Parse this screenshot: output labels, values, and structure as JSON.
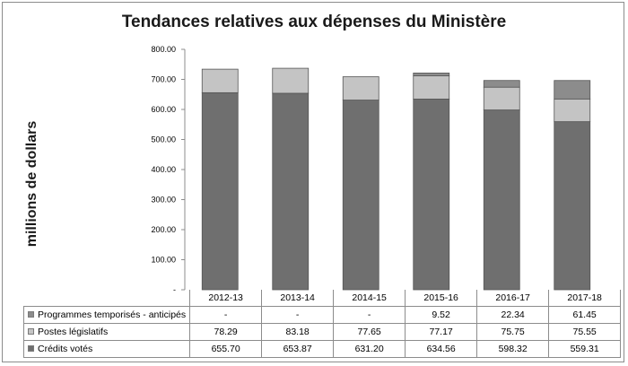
{
  "chart_data": {
    "type": "bar",
    "stacked": true,
    "title": "Tendances relatives aux dépenses du Ministère",
    "xlabel": "",
    "ylabel": "millions de dollars",
    "ylim": [
      0,
      800
    ],
    "yticks": [
      "-",
      "100.00",
      "200.00",
      "300.00",
      "400.00",
      "500.00",
      "600.00",
      "700.00",
      "800.00"
    ],
    "categories": [
      "2012-13",
      "2013-14",
      "2014-15",
      "2015-16",
      "2016-17",
      "2017-18"
    ],
    "grid": false,
    "legend": "data-table",
    "series": [
      {
        "name": "Programmes temporisés - anticipés",
        "values": [
          null,
          null,
          null,
          9.52,
          22.34,
          61.45
        ],
        "labels": [
          "-",
          "-",
          "-",
          "9.52",
          "22.34",
          "61.45"
        ],
        "color": "#8c8c8c"
      },
      {
        "name": "Postes législatifs",
        "values": [
          78.29,
          83.18,
          77.65,
          77.17,
          75.75,
          75.55
        ],
        "labels": [
          "78.29",
          "83.18",
          "77.65",
          "77.17",
          "75.75",
          "75.55"
        ],
        "color": "#c4c4c4"
      },
      {
        "name": "Crédits votés",
        "values": [
          655.7,
          653.87,
          631.2,
          634.56,
          598.32,
          559.31
        ],
        "labels": [
          "655.70",
          "653.87",
          "631.20",
          "634.56",
          "598.32",
          "559.31"
        ],
        "color": "#6f6f6f"
      }
    ]
  }
}
